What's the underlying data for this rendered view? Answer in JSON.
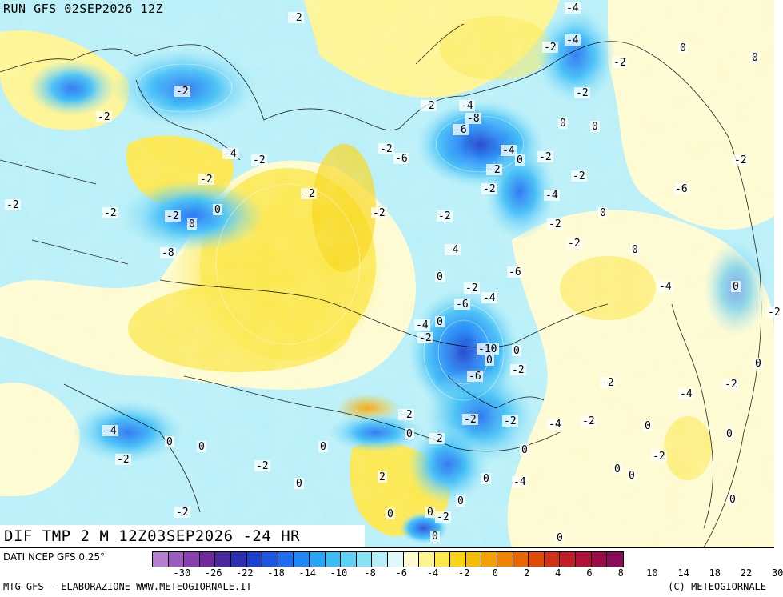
{
  "header": {
    "run_label": "RUN GFS 02SEP2026 12Z",
    "valid_label": "DIF TMP 2 M 12Z03SEP2026 -24 HR"
  },
  "footer": {
    "source": "DATI NCEP GFS 0.25°",
    "credit_left": "MTG-GFS - ELABORAZIONE WWW.METEOGIORNALE.IT",
    "credit_right": "(C) METEOGIORNALE"
  },
  "legend": {
    "colors": [
      "#b57fd0",
      "#9c5cbe",
      "#8a40ac",
      "#6e2a9b",
      "#4a2a9e",
      "#2d2fb2",
      "#1c3fcc",
      "#1c55df",
      "#1e6df0",
      "#1f87f5",
      "#28a4f7",
      "#3cbdf6",
      "#5fd2f4",
      "#8ae2f5",
      "#b7eff8",
      "#dff9fb",
      "#fefbd0",
      "#fdf48f",
      "#fbe74a",
      "#f8d512",
      "#f6be00",
      "#f4a100",
      "#f08400",
      "#e86600",
      "#df4a06",
      "#d23116",
      "#c21d28",
      "#b01138",
      "#9c0b49",
      "#880c5a"
    ],
    "tick_labels": [
      "-30",
      "-26",
      "-22",
      "-18",
      "-14",
      "-10",
      "-8",
      "-6",
      "-4",
      "-2",
      "0",
      "2",
      "4",
      "6",
      "8",
      "10",
      "14",
      "18",
      "22",
      "30"
    ],
    "units": "°"
  },
  "map": {
    "contour_values": [
      "-2",
      "-4",
      "-2",
      "-4",
      "-2",
      "0",
      "0",
      "-2",
      "-2",
      "-8",
      "-6",
      "-2",
      "-4",
      "0",
      "0",
      "-2",
      "-4",
      "-2",
      "-2",
      "-6",
      "-4",
      "0",
      "-2",
      "-2",
      "-2",
      "-2",
      "-6",
      "-2",
      "-2",
      "-2",
      "-2",
      "-4",
      "0",
      "-2",
      "-2",
      "-2",
      "0",
      "0",
      "-2",
      "-2",
      "-2",
      "0",
      "-2",
      "-8",
      "-4",
      "0",
      "-6",
      "-2",
      "-4",
      "-6",
      "0",
      "-4",
      "-2",
      "0",
      "-10",
      "0",
      "-2",
      "-6",
      "-4",
      "0",
      "-2",
      "-4",
      "-2",
      "0",
      "-2",
      "-2",
      "-2",
      "-4",
      "-2",
      "0",
      "0",
      "-2",
      "-4",
      "0",
      "0",
      "-2",
      "0",
      "0",
      "-2",
      "-2",
      "0",
      "2",
      "0",
      "-4",
      "0",
      "0",
      "0",
      "-2",
      "0",
      "0",
      "-2",
      "0",
      "0",
      "0",
      "0",
      "-2"
    ]
  }
}
